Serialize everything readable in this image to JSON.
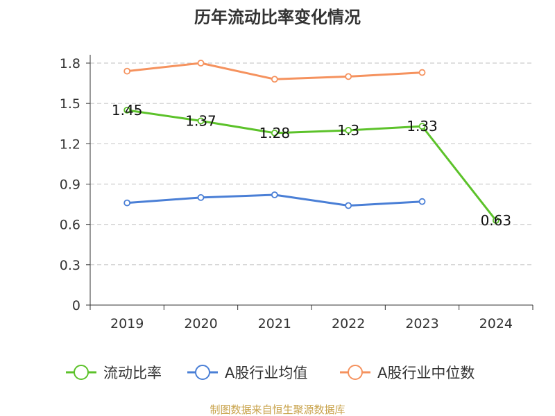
{
  "chart_data": {
    "type": "line",
    "title": "历年流动比率变化情况",
    "categories": [
      "2019",
      "2020",
      "2021",
      "2022",
      "2023",
      "2024"
    ],
    "ylim": [
      0,
      1.8
    ],
    "yticks": [
      "0",
      "0.3",
      "0.6",
      "0.9",
      "1.2",
      "1.5",
      "1.8"
    ],
    "grid": true,
    "legend_position": "bottom",
    "series": [
      {
        "name": "流动比率",
        "color": "#5cc22a",
        "values": [
          1.45,
          1.37,
          1.28,
          1.3,
          1.33,
          0.63
        ],
        "labels": [
          "1.45",
          "1.37",
          "1.28",
          "1.3",
          "1.33",
          "0.63"
        ]
      },
      {
        "name": "A股行业均值",
        "color": "#4a7fd6",
        "values": [
          0.76,
          0.8,
          0.82,
          0.74,
          0.77,
          null
        ]
      },
      {
        "name": "A股行业中位数",
        "color": "#f5925e",
        "values": [
          1.74,
          1.8,
          1.68,
          1.7,
          1.73,
          null
        ]
      }
    ],
    "source": "制图数据来自恒生聚源数据库"
  }
}
